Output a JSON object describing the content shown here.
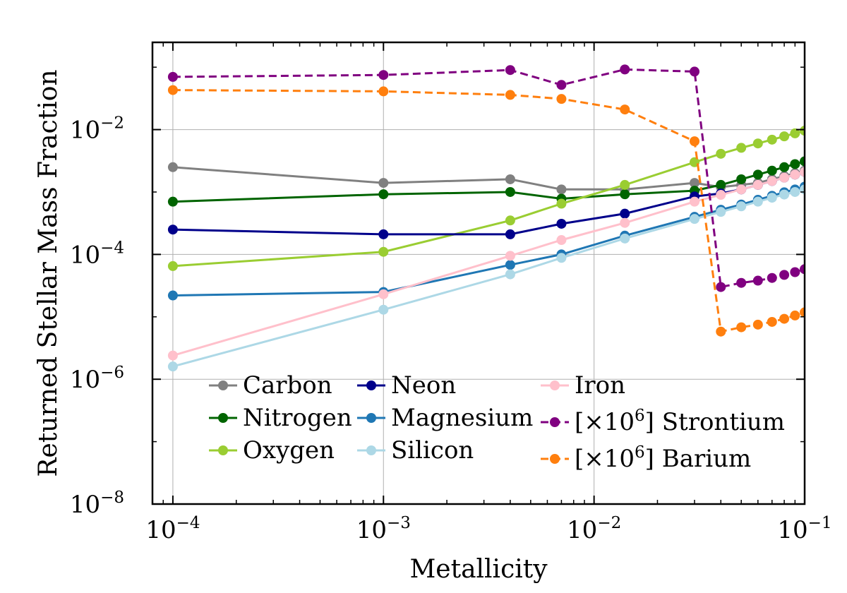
{
  "chart_data": {
    "type": "line",
    "xlabel": "Metallicity",
    "ylabel": "Returned Stellar Mass Fraction",
    "xscale": "log",
    "yscale": "log",
    "xlim": [
      8e-05,
      0.1
    ],
    "ylim": [
      1e-08,
      0.25
    ],
    "grid": true,
    "legend_position": "lower-left",
    "x_ticks": [
      {
        "base": "10",
        "exp": "−4",
        "value": 0.0001
      },
      {
        "base": "10",
        "exp": "−3",
        "value": 0.001
      },
      {
        "base": "10",
        "exp": "−2",
        "value": 0.01
      },
      {
        "base": "10",
        "exp": "−1",
        "value": 0.1
      }
    ],
    "y_ticks": [
      {
        "base": "10",
        "exp": "−8",
        "value": 1e-08
      },
      {
        "base": "10",
        "exp": "−6",
        "value": 1e-06
      },
      {
        "base": "10",
        "exp": "−4",
        "value": 0.0001
      },
      {
        "base": "10",
        "exp": "−2",
        "value": 0.01
      }
    ],
    "series": [
      {
        "name": "Carbon",
        "color": "#808080",
        "dashed": false,
        "x": [
          0.0001,
          0.001,
          0.004,
          0.007,
          0.014,
          0.03,
          0.04,
          0.05,
          0.06,
          0.07,
          0.08,
          0.09,
          0.1
        ],
        "y": [
          0.0025,
          0.0014,
          0.0016,
          0.0011,
          0.0011,
          0.0014,
          0.0012,
          0.0013,
          0.0014,
          0.0016,
          0.0018,
          0.002,
          0.0022
        ]
      },
      {
        "name": "Nitrogen",
        "color": "#006400",
        "dashed": false,
        "x": [
          0.0001,
          0.001,
          0.004,
          0.007,
          0.014,
          0.03,
          0.04,
          0.05,
          0.06,
          0.07,
          0.08,
          0.09,
          0.1
        ],
        "y": [
          0.0007,
          0.00092,
          0.001,
          0.00078,
          0.00092,
          0.00105,
          0.0013,
          0.0016,
          0.0019,
          0.0022,
          0.0025,
          0.0028,
          0.0031
        ]
      },
      {
        "name": "Oxygen",
        "color": "#9ACD32",
        "dashed": false,
        "x": [
          0.0001,
          0.001,
          0.004,
          0.007,
          0.014,
          0.03,
          0.04,
          0.05,
          0.06,
          0.07,
          0.08,
          0.09,
          0.1
        ],
        "y": [
          6.5e-05,
          0.00011,
          0.00035,
          0.00065,
          0.0013,
          0.003,
          0.0041,
          0.0051,
          0.006,
          0.0069,
          0.0078,
          0.0087,
          0.0096
        ]
      },
      {
        "name": "Neon",
        "color": "#00008B",
        "dashed": false,
        "x": [
          0.0001,
          0.001,
          0.004,
          0.007,
          0.014,
          0.03,
          0.04,
          0.05,
          0.06,
          0.07,
          0.08,
          0.09,
          0.1
        ],
        "y": [
          0.00025,
          0.00021,
          0.00021,
          0.00031,
          0.00045,
          0.00085,
          0.00095,
          0.0011,
          0.0013,
          0.0015,
          0.0017,
          0.0019,
          0.0021
        ]
      },
      {
        "name": "Magnesium",
        "color": "#1F77B4",
        "dashed": false,
        "x": [
          0.0001,
          0.001,
          0.004,
          0.007,
          0.014,
          0.03,
          0.04,
          0.05,
          0.06,
          0.07,
          0.08,
          0.09,
          0.1
        ],
        "y": [
          2.2e-05,
          2.5e-05,
          6.8e-05,
          0.0001,
          0.0002,
          0.0004,
          0.00052,
          0.00063,
          0.00075,
          0.00087,
          0.00099,
          0.0011,
          0.00122
        ]
      },
      {
        "name": "Silicon",
        "color": "#ADD8E6",
        "dashed": false,
        "x": [
          0.0001,
          0.001,
          0.004,
          0.007,
          0.014,
          0.03,
          0.04,
          0.05,
          0.06,
          0.07,
          0.08,
          0.09,
          0.1
        ],
        "y": [
          1.6e-06,
          1.3e-05,
          4.8e-05,
          8.8e-05,
          0.00018,
          0.00037,
          0.00048,
          0.00059,
          0.0007,
          0.00081,
          0.00091,
          0.001,
          0.0011
        ]
      },
      {
        "name": "Iron",
        "color": "#FFC0CB",
        "dashed": false,
        "x": [
          0.0001,
          0.001,
          0.004,
          0.007,
          0.014,
          0.03,
          0.04,
          0.05,
          0.06,
          0.07,
          0.08,
          0.09,
          0.1
        ],
        "y": [
          2.4e-06,
          2.3e-05,
          9.5e-05,
          0.00017,
          0.00032,
          0.0007,
          0.0009,
          0.0011,
          0.0013,
          0.0015,
          0.0017,
          0.0019,
          0.0021
        ]
      },
      {
        "name": "[×10^6] Strontium",
        "label_prefix": "[×10",
        "label_exp": "6",
        "label_suffix": "] Strontium",
        "color": "#800080",
        "dashed": true,
        "x": [
          0.0001,
          0.001,
          0.004,
          0.007,
          0.014,
          0.03,
          0.04,
          0.05,
          0.06,
          0.07,
          0.08,
          0.09,
          0.1
        ],
        "y": [
          0.07,
          0.075,
          0.09,
          0.052,
          0.092,
          0.085,
          3e-05,
          3.5e-05,
          3.8e-05,
          4.2e-05,
          4.7e-05,
          5.2e-05,
          5.8e-05
        ]
      },
      {
        "name": "[×10^6] Barium",
        "label_prefix": "[×10",
        "label_exp": "6",
        "label_suffix": "] Barium",
        "color": "#FF7F0E",
        "dashed": true,
        "x": [
          0.0001,
          0.001,
          0.004,
          0.007,
          0.014,
          0.03,
          0.04,
          0.05,
          0.06,
          0.07,
          0.08,
          0.09,
          0.1
        ],
        "y": [
          0.043,
          0.041,
          0.036,
          0.031,
          0.021,
          0.0065,
          5.8e-06,
          6.8e-06,
          7.5e-06,
          8.3e-06,
          9.3e-06,
          1.05e-05,
          1.18e-05
        ]
      }
    ]
  }
}
